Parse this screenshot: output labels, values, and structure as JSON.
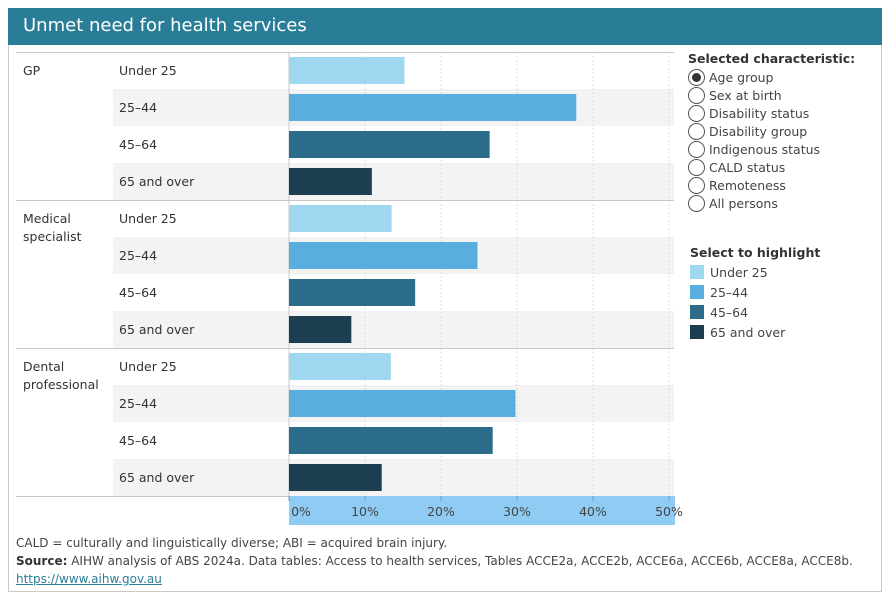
{
  "title": "Unmet need for health services",
  "chart_data": {
    "type": "bar",
    "orientation": "horizontal",
    "groups": [
      "GP",
      "Medical specialist",
      "Dental professional"
    ],
    "categories": [
      "Under 25",
      "25–44",
      "45–64",
      "65 and over"
    ],
    "series": [
      {
        "group": "GP",
        "values": [
          15.2,
          37.8,
          26.4,
          10.9
        ]
      },
      {
        "group": "Medical specialist",
        "values": [
          13.5,
          24.8,
          16.6,
          8.2
        ]
      },
      {
        "group": "Dental professional",
        "values": [
          13.4,
          29.8,
          26.8,
          12.2
        ]
      }
    ],
    "xlim": [
      0,
      50
    ],
    "x_ticks": [
      0,
      10,
      20,
      30,
      40,
      50
    ],
    "x_tick_labels": [
      "0%",
      "10%",
      "20%",
      "30%",
      "40%",
      "50%"
    ],
    "colors": [
      "#9fd6f0",
      "#58aedf",
      "#2b6c8a",
      "#1d3e51"
    ],
    "grid": true
  },
  "characteristic": {
    "label": "Selected  characteristic:",
    "options": [
      "Age group",
      "Sex at birth",
      "Disability status",
      "Disability group",
      "Indigenous status",
      "CALD status",
      "Remoteness",
      "All persons"
    ],
    "selected": "Age group"
  },
  "highlight": {
    "label": "Select to highlight",
    "items": [
      "Under 25",
      "25–44",
      "45–64",
      "65 and over"
    ]
  },
  "footer": {
    "note": "CALD = culturally and linguistically diverse; ABI = acquired brain injury.",
    "source_label": "Source:",
    "source_text": " AIHW analysis of ABS 2024a. Data tables: Access to health services, Tables ACCE2a, ACCE2b, ACCE6a, ACCE6b, ACCE8a, ACCE8b.",
    "link": "https://www.aihw.gov.au"
  }
}
